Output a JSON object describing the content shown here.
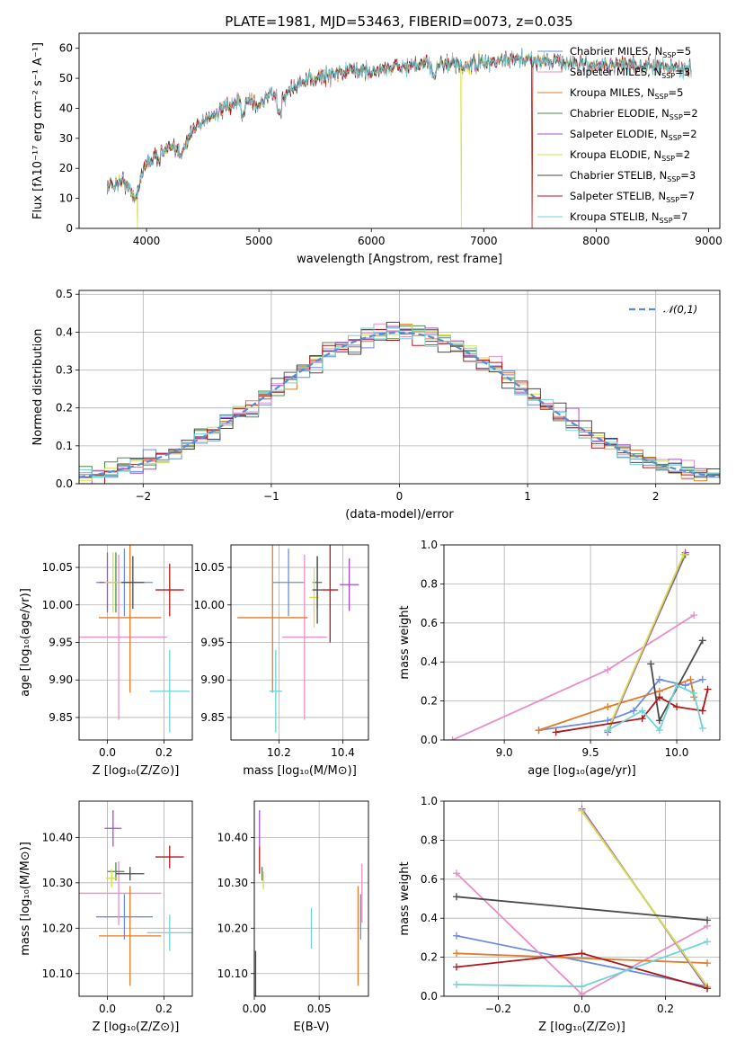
{
  "title": "PLATE=1981, MJD=53463, FIBERID=0073, z=0.035",
  "models": [
    {
      "key": "chabrier_miles",
      "label": "Chabrier MILES, N",
      "sub": "SSP",
      "n": "5",
      "color": "#6a8ee0"
    },
    {
      "key": "salpeter_miles",
      "label": "Salpeter MILES, N",
      "sub": "SSP",
      "n": "3",
      "color": "#e88fc8"
    },
    {
      "key": "kroupa_miles",
      "label": "Kroupa MILES, N",
      "sub": "SSP",
      "n": "5",
      "color": "#e07b2a"
    },
    {
      "key": "chabrier_elodie",
      "label": "Chabrier ELODIE, N",
      "sub": "SSP",
      "n": "2",
      "color": "#4c8a4c"
    },
    {
      "key": "salpeter_elodie",
      "label": "Salpeter ELODIE, N",
      "sub": "SSP",
      "n": "2",
      "color": "#a34fc9"
    },
    {
      "key": "kroupa_elodie",
      "label": "Kroupa ELODIE, N",
      "sub": "SSP",
      "n": "2",
      "color": "#d4e04a"
    },
    {
      "key": "chabrier_stelib",
      "label": "Chabrier STELIB, N",
      "sub": "SSP",
      "n": "3",
      "color": "#4a4a4a"
    },
    {
      "key": "salpeter_stelib",
      "label": "Salpeter STELIB, N",
      "sub": "SSP",
      "n": "7",
      "color": "#b01818"
    },
    {
      "key": "kroupa_stelib",
      "label": "Kroupa STELIB, N",
      "sub": "SSP",
      "n": "7",
      "color": "#6fd3d8"
    }
  ],
  "chart_data": [
    {
      "id": "spectrum",
      "type": "line",
      "xlabel": "wavelength [Angstrom, rest frame]",
      "ylabel": "Flux [fλ10⁻¹⁷ erg cm⁻² s⁻¹ A⁻¹]",
      "xlim": [
        3400,
        9100
      ],
      "ylim": [
        0,
        65
      ],
      "xticks": [
        4000,
        5000,
        6000,
        7000,
        8000,
        9000
      ],
      "yticks": [
        0,
        10,
        20,
        30,
        40,
        50,
        60
      ],
      "grid": false,
      "legend": "top-right",
      "continuum": [
        [
          3650,
          14
        ],
        [
          3800,
          16
        ],
        [
          3900,
          10
        ],
        [
          3950,
          17
        ],
        [
          4000,
          22
        ],
        [
          4100,
          24
        ],
        [
          4200,
          27
        ],
        [
          4300,
          25
        ],
        [
          4400,
          32
        ],
        [
          4500,
          36
        ],
        [
          4700,
          40
        ],
        [
          4900,
          43
        ],
        [
          5000,
          41
        ],
        [
          5100,
          45
        ],
        [
          5200,
          43
        ],
        [
          5300,
          47
        ],
        [
          5500,
          50
        ],
        [
          5700,
          52
        ],
        [
          5900,
          53
        ],
        [
          6000,
          52
        ],
        [
          6200,
          54
        ],
        [
          6400,
          54
        ],
        [
          6600,
          55
        ],
        [
          6800,
          54
        ],
        [
          7000,
          55
        ],
        [
          7200,
          56
        ],
        [
          7400,
          56
        ],
        [
          7600,
          56
        ],
        [
          7800,
          55
        ],
        [
          8000,
          54
        ],
        [
          8200,
          55
        ],
        [
          8400,
          54
        ],
        [
          8600,
          54
        ],
        [
          8850,
          53
        ]
      ],
      "dropouts": [
        {
          "model": "kroupa_miles",
          "x": 7430
        },
        {
          "model": "kroupa_elodie",
          "x": 6800
        },
        {
          "model": "salpeter_stelib",
          "x": 7430
        },
        {
          "model": "kroupa_elodie",
          "x": 3920
        }
      ]
    },
    {
      "id": "residuals",
      "type": "line",
      "xlabel": "(data-model)/error",
      "ylabel": "Normed distribution",
      "xlim": [
        -2.5,
        2.5
      ],
      "ylim": [
        0,
        0.51
      ],
      "xticks": [
        -2,
        -1,
        0,
        1,
        2
      ],
      "yticks": [
        0.0,
        0.1,
        0.2,
        0.3,
        0.4,
        0.5
      ],
      "grid": true,
      "legend": "top-right",
      "reference_label": "𝒩(0,1)"
    },
    {
      "id": "age_vs_Z",
      "type": "scatter",
      "xlabel": "Z [log₁₀(Z/Z⊙)]",
      "ylabel": "age  [log₁₀(age/yr)]",
      "xlim": [
        -0.1,
        0.3
      ],
      "ylim": [
        9.82,
        10.08
      ],
      "xticks": [
        0.0,
        0.2
      ],
      "yticks": [
        9.85,
        9.9,
        9.95,
        10.0,
        10.05
      ],
      "grid": true,
      "points": [
        {
          "model": "chabrier_miles",
          "x": 0.06,
          "y": 10.03,
          "xerr": 0.1,
          "yerr": 0.045
        },
        {
          "model": "salpeter_miles",
          "x": 0.04,
          "y": 9.957,
          "xerr": 0.17,
          "yerr": 0.11
        },
        {
          "model": "kroupa_miles",
          "x": 0.08,
          "y": 9.983,
          "xerr": 0.11,
          "yerr": 0.1
        },
        {
          "model": "chabrier_elodie",
          "x": 0.03,
          "y": 10.03,
          "xerr": 0.03,
          "yerr": 0.04
        },
        {
          "model": "salpeter_elodie",
          "x": 0.0,
          "y": 10.03,
          "xerr": 0.03,
          "yerr": 0.04
        },
        {
          "model": "kroupa_elodie",
          "x": 0.02,
          "y": 10.03,
          "xerr": 0.03,
          "yerr": 0.04
        },
        {
          "model": "chabrier_stelib",
          "x": 0.09,
          "y": 10.03,
          "xerr": 0.04,
          "yerr": 0.035
        },
        {
          "model": "salpeter_stelib",
          "x": 0.22,
          "y": 10.02,
          "xerr": 0.05,
          "yerr": 0.035
        },
        {
          "model": "kroupa_stelib",
          "x": 0.22,
          "y": 9.885,
          "xerr": 0.07,
          "yerr": 0.055
        }
      ]
    },
    {
      "id": "age_vs_mass",
      "type": "scatter",
      "xlabel": "mass [log₁₀(M/M⊙)]",
      "ylabel": "",
      "xlim": [
        10.05,
        10.48
      ],
      "ylim": [
        9.82,
        10.08
      ],
      "xticks": [
        10.2,
        10.4
      ],
      "yticks": [
        9.85,
        9.9,
        9.95,
        10.0,
        10.05
      ],
      "grid": true,
      "points": [
        {
          "model": "chabrier_miles",
          "x": 10.23,
          "y": 10.03,
          "xerr": 0.05,
          "yerr": 0.045
        },
        {
          "model": "salpeter_miles",
          "x": 10.28,
          "y": 9.957,
          "xerr": 0.07,
          "yerr": 0.11
        },
        {
          "model": "kroupa_miles",
          "x": 10.18,
          "y": 9.983,
          "xerr": 0.11,
          "yerr": 0.1
        },
        {
          "model": "chabrier_elodie",
          "x": 10.32,
          "y": 10.03,
          "xerr": 0.015,
          "yerr": 0.035
        },
        {
          "model": "salpeter_elodie",
          "x": 10.42,
          "y": 10.027,
          "xerr": 0.03,
          "yerr": 0.035
        },
        {
          "model": "kroupa_elodie",
          "x": 10.31,
          "y": 10.01,
          "xerr": 0.015,
          "yerr": 0.04
        },
        {
          "model": "chabrier_stelib",
          "x": 10.32,
          "y": 10.02,
          "xerr": 0.015,
          "yerr": 0.045
        },
        {
          "model": "salpeter_stelib",
          "x": 10.36,
          "y": 10.02,
          "xerr": 0.025,
          "yerr": 0.07
        },
        {
          "model": "kroupa_stelib",
          "x": 10.19,
          "y": 9.885,
          "xerr": 0.02,
          "yerr": 0.055
        }
      ]
    },
    {
      "id": "mass_vs_Z",
      "type": "scatter",
      "xlabel": "Z [log₁₀(Z/Z⊙)]",
      "ylabel": "mass [log₁₀(M/M⊙)]",
      "xlim": [
        -0.1,
        0.3
      ],
      "ylim": [
        10.05,
        10.48
      ],
      "xticks": [
        0.0,
        0.2
      ],
      "yticks": [
        10.1,
        10.2,
        10.3,
        10.4
      ],
      "grid": true,
      "points": [
        {
          "model": "chabrier_miles",
          "x": 0.06,
          "y": 10.225,
          "xerr": 0.1,
          "yerr": 0.05
        },
        {
          "model": "salpeter_miles",
          "x": 0.04,
          "y": 10.277,
          "xerr": 0.15,
          "yerr": 0.07
        },
        {
          "model": "kroupa_miles",
          "x": 0.08,
          "y": 10.183,
          "xerr": 0.11,
          "yerr": 0.11
        },
        {
          "model": "chabrier_elodie",
          "x": 0.03,
          "y": 10.325,
          "xerr": 0.03,
          "yerr": 0.02
        },
        {
          "model": "salpeter_elodie",
          "x": 0.02,
          "y": 10.42,
          "xerr": 0.03,
          "yerr": 0.04
        },
        {
          "model": "kroupa_elodie",
          "x": 0.015,
          "y": 10.31,
          "xerr": 0.02,
          "yerr": 0.02
        },
        {
          "model": "chabrier_stelib",
          "x": 0.08,
          "y": 10.32,
          "xerr": 0.05,
          "yerr": 0.015
        },
        {
          "model": "salpeter_stelib",
          "x": 0.22,
          "y": 10.357,
          "xerr": 0.05,
          "yerr": 0.025
        },
        {
          "model": "kroupa_stelib",
          "x": 0.22,
          "y": 10.19,
          "xerr": 0.08,
          "yerr": 0.04
        }
      ]
    },
    {
      "id": "mass_vs_ebv",
      "type": "scatter",
      "xlabel": "E(B-V)",
      "ylabel": "",
      "xlim": [
        0.0,
        0.088
      ],
      "ylim": [
        10.05,
        10.48
      ],
      "xticks": [
        0.0,
        0.05
      ],
      "yticks": [
        10.1,
        10.2,
        10.3,
        10.4
      ],
      "grid": true,
      "points": [
        {
          "model": "chabrier_miles",
          "x": 0.082,
          "y": 10.225,
          "xerr": 0.0,
          "yerr": 0.05
        },
        {
          "model": "salpeter_miles",
          "x": 0.083,
          "y": 10.277,
          "xerr": 0.0,
          "yerr": 0.065
        },
        {
          "model": "kroupa_miles",
          "x": 0.08,
          "y": 10.183,
          "xerr": 0.0,
          "yerr": 0.11
        },
        {
          "model": "chabrier_elodie",
          "x": 0.006,
          "y": 10.32,
          "xerr": 0.0,
          "yerr": 0.015
        },
        {
          "model": "salpeter_elodie",
          "x": 0.004,
          "y": 10.42,
          "xerr": 0.0,
          "yerr": 0.04
        },
        {
          "model": "kroupa_elodie",
          "x": 0.007,
          "y": 10.305,
          "xerr": 0.0,
          "yerr": 0.02
        },
        {
          "model": "chabrier_stelib",
          "x": 0.001,
          "y": 10.1,
          "xerr": 0.0,
          "yerr": 0.05
        },
        {
          "model": "salpeter_stelib",
          "x": 0.004,
          "y": 10.35,
          "xerr": 0.0,
          "yerr": 0.03
        },
        {
          "model": "kroupa_stelib",
          "x": 0.044,
          "y": 10.2,
          "xerr": 0.0,
          "yerr": 0.045
        }
      ]
    },
    {
      "id": "weight_vs_age",
      "type": "line",
      "xlabel": "age  [log₁₀(age/yr)]",
      "ylabel": "mass weight",
      "xlim": [
        8.65,
        10.25
      ],
      "ylim": [
        0.0,
        1.0
      ],
      "xticks": [
        9.0,
        9.5,
        10.0
      ],
      "yticks": [
        0.0,
        0.2,
        0.4,
        0.6,
        0.8,
        1.0
      ],
      "grid": true,
      "series": [
        {
          "model": "chabrier_miles",
          "x": [
            9.2,
            9.6,
            9.75,
            9.9,
            10.05,
            10.15
          ],
          "y": [
            0.05,
            0.1,
            0.15,
            0.31,
            0.28,
            0.31
          ]
        },
        {
          "model": "salpeter_miles",
          "x": [
            8.7,
            9.6,
            10.1
          ],
          "y": [
            0.0,
            0.36,
            0.64
          ]
        },
        {
          "model": "kroupa_miles",
          "x": [
            9.2,
            9.6,
            9.9,
            10.08,
            10.1
          ],
          "y": [
            0.05,
            0.17,
            0.25,
            0.31,
            0.22
          ]
        },
        {
          "model": "chabrier_elodie",
          "x": [
            9.6,
            10.05
          ],
          "y": [
            0.05,
            0.95
          ]
        },
        {
          "model": "salpeter_elodie",
          "x": [
            9.6,
            10.05
          ],
          "y": [
            0.04,
            0.96
          ]
        },
        {
          "model": "kroupa_elodie",
          "x": [
            9.6,
            10.04
          ],
          "y": [
            0.05,
            0.95
          ]
        },
        {
          "model": "chabrier_stelib",
          "x": [
            9.85,
            9.9,
            10.15
          ],
          "y": [
            0.39,
            0.1,
            0.51
          ]
        },
        {
          "model": "salpeter_stelib",
          "x": [
            9.3,
            9.8,
            9.9,
            10.0,
            10.15,
            10.18
          ],
          "y": [
            0.04,
            0.11,
            0.22,
            0.17,
            0.15,
            0.26
          ]
        },
        {
          "model": "kroupa_stelib",
          "x": [
            9.6,
            9.8,
            9.9,
            10.0,
            10.1,
            10.15
          ],
          "y": [
            0.05,
            0.15,
            0.05,
            0.28,
            0.24,
            0.06
          ]
        }
      ]
    },
    {
      "id": "weight_vs_Z",
      "type": "line",
      "xlabel": "Z [log₁₀(Z/Z⊙)]",
      "ylabel": "mass weight",
      "xlim": [
        -0.33,
        0.33
      ],
      "ylim": [
        0.0,
        1.0
      ],
      "xticks": [
        -0.2,
        0.0,
        0.2
      ],
      "yticks": [
        0.0,
        0.2,
        0.4,
        0.6,
        0.8,
        1.0
      ],
      "grid": true,
      "series": [
        {
          "model": "chabrier_miles",
          "x": [
            -0.3,
            0.3
          ],
          "y": [
            0.31,
            0.05
          ]
        },
        {
          "model": "salpeter_miles",
          "x": [
            -0.3,
            0.0,
            0.3
          ],
          "y": [
            0.63,
            0.01,
            0.36
          ]
        },
        {
          "model": "kroupa_miles",
          "x": [
            -0.3,
            0.3
          ],
          "y": [
            0.22,
            0.17
          ]
        },
        {
          "model": "chabrier_elodie",
          "x": [
            0.0,
            0.3
          ],
          "y": [
            0.95,
            0.05
          ]
        },
        {
          "model": "salpeter_elodie",
          "x": [
            0.0,
            0.3
          ],
          "y": [
            0.96,
            0.04
          ]
        },
        {
          "model": "kroupa_elodie",
          "x": [
            0.0,
            0.3
          ],
          "y": [
            0.95,
            0.05
          ]
        },
        {
          "model": "chabrier_stelib",
          "x": [
            -0.3,
            0.3
          ],
          "y": [
            0.51,
            0.39
          ]
        },
        {
          "model": "salpeter_stelib",
          "x": [
            -0.3,
            0.0,
            0.3
          ],
          "y": [
            0.15,
            0.22,
            0.04
          ]
        },
        {
          "model": "kroupa_stelib",
          "x": [
            -0.3,
            0.0,
            0.3
          ],
          "y": [
            0.06,
            0.05,
            0.28
          ]
        }
      ]
    }
  ]
}
